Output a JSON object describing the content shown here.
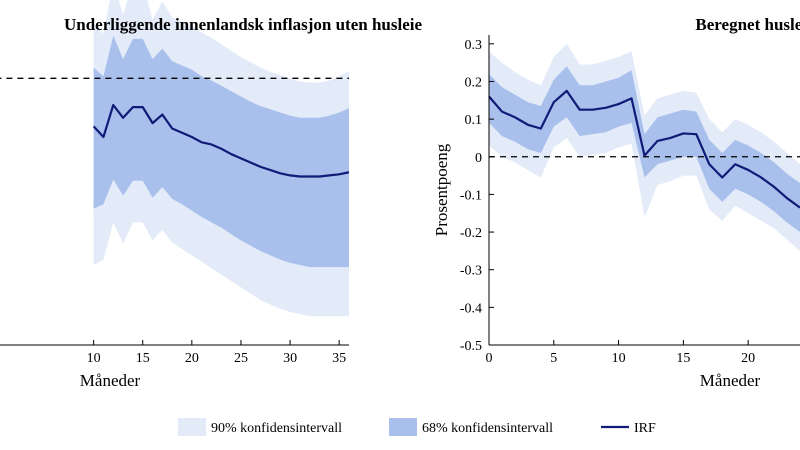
{
  "chart_data": [
    {
      "type": "line",
      "title": "Underliggende innenlandsk inflasjon uten husleie",
      "xlabel": "Måneder",
      "ylabel": "",
      "xlim": [
        0,
        36
      ],
      "ylim": [
        -0.1,
        0.2
      ],
      "x_ticks": [
        10,
        15,
        20,
        25,
        30,
        35
      ],
      "x_tick_labels": [
        "10",
        "15",
        "20",
        "25",
        "30",
        "35"
      ],
      "reference_line": 0.15,
      "grid": false,
      "x": [
        10,
        11,
        12,
        13,
        14,
        15,
        16,
        17,
        18,
        19,
        20,
        21,
        22,
        23,
        24,
        25,
        26,
        27,
        28,
        29,
        30,
        31,
        32,
        33,
        34,
        35,
        36
      ],
      "series": [
        {
          "name": "IRF",
          "values": [
            0.105,
            0.095,
            0.125,
            0.113,
            0.123,
            0.123,
            0.108,
            0.116,
            0.103,
            0.099,
            0.095,
            0.09,
            0.088,
            0.084,
            0.079,
            0.075,
            0.071,
            0.067,
            0.064,
            0.061,
            0.059,
            0.058,
            0.058,
            0.058,
            0.059,
            0.06,
            0.062
          ]
        },
        {
          "name": "68% konfidensintervall",
          "lower": [
            0.028,
            0.032,
            0.055,
            0.04,
            0.054,
            0.054,
            0.038,
            0.048,
            0.037,
            0.032,
            0.026,
            0.02,
            0.015,
            0.01,
            0.004,
            -0.002,
            -0.007,
            -0.012,
            -0.016,
            -0.02,
            -0.023,
            -0.025,
            -0.027,
            -0.027,
            -0.027,
            -0.027,
            -0.027
          ],
          "upper": [
            0.16,
            0.152,
            0.19,
            0.168,
            0.187,
            0.187,
            0.168,
            0.178,
            0.166,
            0.162,
            0.158,
            0.152,
            0.148,
            0.143,
            0.138,
            0.133,
            0.128,
            0.124,
            0.121,
            0.118,
            0.115,
            0.113,
            0.113,
            0.113,
            0.115,
            0.118,
            0.122
          ]
        },
        {
          "name": "90% konfidensintervall",
          "lower": [
            -0.025,
            -0.02,
            0.015,
            -0.005,
            0.015,
            0.015,
            -0.002,
            0.008,
            -0.004,
            -0.01,
            -0.016,
            -0.022,
            -0.028,
            -0.034,
            -0.04,
            -0.046,
            -0.052,
            -0.058,
            -0.062,
            -0.066,
            -0.069,
            -0.071,
            -0.073,
            -0.073,
            -0.073,
            -0.073,
            -0.073
          ],
          "upper": [
            0.2,
            0.192,
            0.24,
            0.21,
            0.24,
            0.24,
            0.205,
            0.222,
            0.207,
            0.203,
            0.199,
            0.193,
            0.188,
            0.182,
            0.176,
            0.17,
            0.165,
            0.16,
            0.156,
            0.153,
            0.15,
            0.147,
            0.146,
            0.146,
            0.148,
            0.152,
            0.157
          ]
        }
      ]
    },
    {
      "type": "line",
      "title": "Beregnet husleie",
      "xlabel": "Måneder",
      "ylabel": "Prosentpoeng",
      "xlim": [
        0,
        24
      ],
      "ylim": [
        -0.5,
        0.35
      ],
      "y_ticks": [
        0.3,
        0.2,
        0.1,
        0,
        -0.1,
        -0.2,
        -0.3,
        -0.4,
        -0.5
      ],
      "y_tick_labels": [
        "0.3",
        "0.2",
        "0.1",
        "0",
        "-0.1",
        "-0.2",
        "-0.3",
        "-0.4",
        "-0.5"
      ],
      "x_ticks": [
        0,
        5,
        10,
        15,
        20
      ],
      "x_tick_labels": [
        "0",
        "5",
        "10",
        "15",
        "20"
      ],
      "reference_line": 0,
      "grid": false,
      "x": [
        0,
        1,
        2,
        3,
        4,
        5,
        6,
        7,
        8,
        9,
        10,
        11,
        12,
        13,
        14,
        15,
        16,
        17,
        18,
        19,
        20,
        21,
        22,
        23,
        24
      ],
      "series": [
        {
          "name": "IRF",
          "values": [
            0.16,
            0.12,
            0.105,
            0.085,
            0.075,
            0.145,
            0.175,
            0.125,
            0.125,
            0.13,
            0.14,
            0.155,
            0.003,
            0.042,
            0.05,
            0.062,
            0.06,
            -0.02,
            -0.055,
            -0.02,
            -0.035,
            -0.055,
            -0.08,
            -0.11,
            -0.135
          ]
        },
        {
          "name": "68% konfidensintervall",
          "lower": [
            0.09,
            0.055,
            0.04,
            0.02,
            0.01,
            0.08,
            0.105,
            0.055,
            0.06,
            0.065,
            0.08,
            0.09,
            -0.055,
            -0.02,
            -0.01,
            0.0,
            0.0,
            -0.085,
            -0.12,
            -0.085,
            -0.1,
            -0.12,
            -0.145,
            -0.175,
            -0.2
          ],
          "upper": [
            0.22,
            0.185,
            0.165,
            0.145,
            0.135,
            0.205,
            0.24,
            0.19,
            0.19,
            0.2,
            0.21,
            0.23,
            0.06,
            0.105,
            0.115,
            0.125,
            0.12,
            0.045,
            0.01,
            0.045,
            0.03,
            0.01,
            -0.015,
            -0.045,
            -0.07
          ]
        },
        {
          "name": "90% konfidensintervall",
          "lower": [
            0.03,
            0.0,
            -0.015,
            -0.035,
            -0.055,
            0.025,
            0.05,
            0.0,
            0.005,
            0.01,
            0.025,
            0.035,
            -0.16,
            -0.075,
            -0.065,
            -0.05,
            -0.05,
            -0.14,
            -0.17,
            -0.13,
            -0.15,
            -0.17,
            -0.19,
            -0.22,
            -0.25
          ],
          "upper": [
            0.28,
            0.25,
            0.225,
            0.205,
            0.19,
            0.265,
            0.3,
            0.245,
            0.245,
            0.255,
            0.265,
            0.28,
            0.11,
            0.155,
            0.165,
            0.175,
            0.17,
            0.1,
            0.065,
            0.1,
            0.085,
            0.065,
            0.04,
            0.01,
            -0.02
          ]
        }
      ]
    }
  ],
  "legend": {
    "position": "bottom-center",
    "items": [
      {
        "label": "90% konfidensintervall",
        "color": "#e3ebf9",
        "kind": "patch"
      },
      {
        "label": "68% konfidensintervall",
        "color": "#a9c0ec",
        "kind": "patch"
      },
      {
        "label": "IRF",
        "color": "#121a78",
        "kind": "line"
      }
    ]
  },
  "colors": {
    "ci90": "#e3ebf9",
    "ci68": "#a9c0ec",
    "irf": "#121a78",
    "axis": "#000000"
  }
}
